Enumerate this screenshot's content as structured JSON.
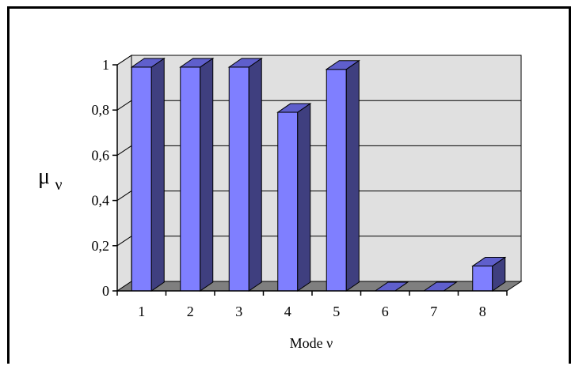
{
  "chart_data": {
    "type": "bar",
    "style": "3d-clustered-column",
    "categories": [
      "1",
      "2",
      "3",
      "4",
      "5",
      "6",
      "7",
      "8"
    ],
    "values": [
      0.99,
      0.99,
      0.99,
      0.79,
      0.98,
      0.0,
      0.0,
      0.11
    ],
    "ylabel_main": "μ",
    "ylabel_sub": "ν",
    "xlabel": "Mode ν",
    "ylim": [
      0,
      1
    ],
    "yticks": [
      "0",
      "0,2",
      "0,4",
      "0,6",
      "0,8",
      "1"
    ],
    "grid": true,
    "legend": "none",
    "colors": {
      "bar_front": "#7F7FFF",
      "bar_side": "#3F3F7F",
      "bar_top": "#5F5FCC",
      "wall": "#E0E0E0",
      "floor": "#7F7F7F",
      "gridline": "#000000"
    }
  }
}
